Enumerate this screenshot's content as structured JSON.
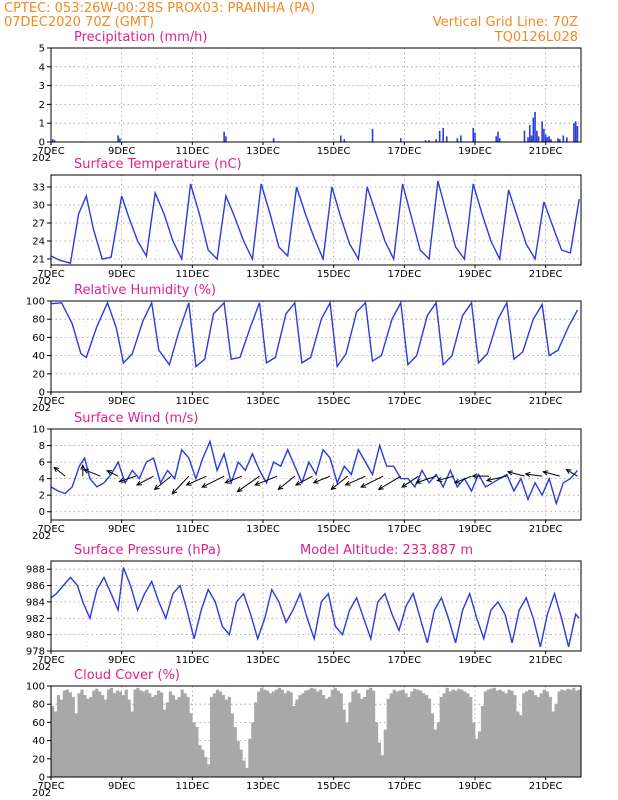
{
  "header": {
    "line1": "CPTEC:   053:26W-00:28S   PROX03: PRAINHA (PA)",
    "line2_left": "07DEC2020 70Z (GMT)",
    "line2_right": "Vertical Grid Line: 70Z",
    "line3_right": "TQ0126L028"
  },
  "colors": {
    "header": "#f08a24",
    "panel_title": "#e0208a",
    "line": "#2b3bdc",
    "bar_precip": "#2b3bdc",
    "cloud_bar": "#a8a8a8",
    "wind_arrow": "#000000"
  },
  "x_axis": {
    "tick_labels": [
      "7DEC",
      "9DEC",
      "11DEC",
      "13DEC",
      "15DEC",
      "17DEC",
      "19DEC",
      "21DEC"
    ],
    "tick_days": [
      7,
      9,
      11,
      13,
      15,
      17,
      19,
      21
    ],
    "day_range": [
      7,
      22
    ],
    "edge_label": "202"
  },
  "chart_data": [
    {
      "id": "precip",
      "type": "bar",
      "title": "Precipitation  (mm/h)",
      "ylim": [
        0,
        5
      ],
      "yticks": [
        0,
        1,
        2,
        3,
        4,
        5
      ],
      "grid": true,
      "x_days": [
        7.05,
        7.1,
        8.9,
        8.95,
        11.9,
        11.95,
        13.3,
        15.2,
        15.3,
        16.1,
        16.9,
        17.6,
        17.7,
        17.9,
        18.0,
        18.1,
        18.2,
        18.5,
        18.6,
        18.95,
        19.0,
        19.6,
        19.65,
        19.7,
        20.4,
        20.5,
        20.55,
        20.6,
        20.65,
        20.7,
        20.75,
        20.8,
        20.9,
        20.95,
        21.0,
        21.05,
        21.1,
        21.15,
        21.35,
        21.4,
        21.5,
        21.6,
        21.8,
        21.85,
        21.9
      ],
      "values": [
        0.15,
        0.1,
        0.35,
        0.2,
        0.55,
        0.3,
        0.2,
        0.35,
        0.15,
        0.7,
        0.2,
        0.1,
        0.1,
        0.15,
        0.6,
        0.75,
        0.3,
        0.2,
        0.35,
        0.75,
        0.5,
        0.3,
        0.55,
        0.2,
        0.6,
        0.25,
        0.9,
        0.35,
        1.3,
        1.6,
        0.6,
        0.3,
        1.1,
        0.7,
        0.4,
        0.25,
        0.3,
        0.15,
        0.2,
        0.15,
        0.35,
        0.25,
        1.0,
        1.1,
        0.85
      ]
    },
    {
      "id": "temp",
      "type": "line",
      "title": "Surface Temperature (nC)",
      "ylim": [
        20,
        35
      ],
      "yticks": [
        21,
        24,
        27,
        30,
        33
      ],
      "grid": true,
      "x_days": [
        7.0,
        7.25,
        7.55,
        7.78,
        8.0,
        8.2,
        8.45,
        8.7,
        9.0,
        9.2,
        9.45,
        9.7,
        9.95,
        10.2,
        10.45,
        10.7,
        10.95,
        11.2,
        11.45,
        11.7,
        11.95,
        12.2,
        12.45,
        12.7,
        12.95,
        13.2,
        13.45,
        13.7,
        13.95,
        14.2,
        14.45,
        14.7,
        14.95,
        15.2,
        15.45,
        15.7,
        15.95,
        16.2,
        16.45,
        16.7,
        16.95,
        17.2,
        17.45,
        17.7,
        17.95,
        18.2,
        18.45,
        18.7,
        18.95,
        19.2,
        19.45,
        19.7,
        19.95,
        20.2,
        20.45,
        20.7,
        20.95,
        21.2,
        21.45,
        21.7,
        21.95
      ],
      "values": [
        21.5,
        20.8,
        20.3,
        28.5,
        31.5,
        26,
        21,
        21.3,
        31.5,
        28,
        24,
        21.5,
        32,
        28.5,
        24,
        21,
        33.5,
        28.5,
        22.5,
        21,
        31.5,
        28,
        24,
        21,
        33.5,
        28.5,
        23,
        21.5,
        33,
        28.5,
        24.5,
        21,
        33,
        28,
        23.5,
        21,
        33,
        28.5,
        24,
        21,
        33.5,
        28,
        22.5,
        21,
        34,
        28.5,
        23,
        21,
        33.5,
        28.5,
        24,
        21,
        32.5,
        28,
        23.5,
        21,
        30.5,
        26.5,
        22.5,
        22,
        31
      ]
    },
    {
      "id": "rh",
      "type": "line",
      "title": "Relative Humidity (%)",
      "ylim": [
        0,
        100
      ],
      "yticks": [
        0,
        20,
        40,
        60,
        80,
        100
      ],
      "grid": true,
      "x_days": [
        7.0,
        7.3,
        7.6,
        7.85,
        8.0,
        8.3,
        8.6,
        8.85,
        9.05,
        9.3,
        9.6,
        9.85,
        10.05,
        10.35,
        10.6,
        10.9,
        11.1,
        11.35,
        11.6,
        11.9,
        12.1,
        12.35,
        12.65,
        12.9,
        13.1,
        13.35,
        13.65,
        13.9,
        14.1,
        14.35,
        14.65,
        14.9,
        15.1,
        15.35,
        15.65,
        15.9,
        16.1,
        16.35,
        16.65,
        16.9,
        17.1,
        17.35,
        17.65,
        17.9,
        18.1,
        18.35,
        18.65,
        18.9,
        19.1,
        19.35,
        19.65,
        19.9,
        20.1,
        20.35,
        20.65,
        20.9,
        21.1,
        21.35,
        21.65,
        21.9
      ],
      "values": [
        97,
        98,
        75,
        42,
        38,
        72,
        98,
        70,
        32,
        42,
        78,
        98,
        46,
        30,
        64,
        98,
        28,
        36,
        86,
        98,
        36,
        38,
        72,
        98,
        32,
        38,
        86,
        98,
        32,
        38,
        80,
        98,
        28,
        42,
        88,
        98,
        34,
        40,
        80,
        98,
        30,
        40,
        84,
        98,
        30,
        40,
        84,
        98,
        32,
        42,
        80,
        98,
        36,
        44,
        80,
        96,
        40,
        46,
        72,
        90
      ]
    },
    {
      "id": "wind",
      "type": "line",
      "title": "Surface Wind (m/s)",
      "ylim": [
        -1,
        10
      ],
      "yticks": [
        0,
        2,
        4,
        6,
        8,
        10
      ],
      "grid": true,
      "x_days": [
        7.0,
        7.2,
        7.4,
        7.6,
        7.8,
        7.95,
        8.1,
        8.3,
        8.5,
        8.7,
        8.9,
        9.1,
        9.3,
        9.5,
        9.7,
        9.9,
        10.1,
        10.3,
        10.5,
        10.7,
        10.9,
        11.1,
        11.3,
        11.5,
        11.7,
        11.9,
        12.1,
        12.3,
        12.5,
        12.7,
        12.9,
        13.1,
        13.3,
        13.5,
        13.7,
        13.9,
        14.1,
        14.3,
        14.5,
        14.7,
        14.9,
        15.1,
        15.3,
        15.5,
        15.7,
        15.9,
        16.1,
        16.3,
        16.5,
        16.7,
        16.9,
        17.1,
        17.3,
        17.5,
        17.7,
        17.9,
        18.1,
        18.3,
        18.5,
        18.7,
        18.9,
        19.1,
        19.3,
        19.5,
        19.7,
        19.9,
        20.1,
        20.3,
        20.5,
        20.7,
        20.9,
        21.1,
        21.3,
        21.5,
        21.7,
        21.9
      ],
      "values": [
        3,
        2.5,
        2.2,
        3,
        5.5,
        6.5,
        4,
        3,
        3.5,
        4.5,
        6,
        3.5,
        5,
        4,
        6,
        6.5,
        3.5,
        5,
        4,
        7.5,
        6.5,
        4,
        6.5,
        8.5,
        5,
        7,
        3.5,
        6,
        5,
        7,
        5,
        3.5,
        6,
        5.5,
        7.5,
        5.5,
        3.5,
        6,
        4.5,
        7.5,
        6.5,
        3.5,
        5.5,
        4.5,
        7.5,
        6,
        4.5,
        8,
        5.5,
        5.5,
        4,
        4,
        3,
        5,
        3.5,
        4.5,
        3,
        5,
        3,
        4,
        2.5,
        4.5,
        3,
        3.5,
        4,
        4.5,
        2.5,
        4,
        1.5,
        3.5,
        2,
        4,
        1,
        3.5,
        4,
        5
      ]
    },
    {
      "id": "pressure",
      "type": "line",
      "title": "Surface Pressure (hPa)",
      "title_right": "Model Altitude: 233.887  m",
      "ylim": [
        978,
        989
      ],
      "yticks": [
        978,
        980,
        982,
        984,
        986,
        988
      ],
      "grid": true,
      "x_days": [
        7.0,
        7.15,
        7.35,
        7.55,
        7.75,
        7.9,
        8.1,
        8.3,
        8.5,
        8.7,
        8.9,
        9.05,
        9.25,
        9.45,
        9.65,
        9.85,
        10.05,
        10.25,
        10.45,
        10.65,
        10.85,
        11.05,
        11.25,
        11.45,
        11.65,
        11.85,
        12.05,
        12.25,
        12.45,
        12.65,
        12.85,
        13.05,
        13.25,
        13.45,
        13.65,
        13.85,
        14.05,
        14.25,
        14.45,
        14.65,
        14.85,
        15.05,
        15.25,
        15.45,
        15.65,
        15.85,
        16.05,
        16.25,
        16.45,
        16.65,
        16.85,
        17.05,
        17.25,
        17.45,
        17.65,
        17.85,
        18.05,
        18.25,
        18.45,
        18.65,
        18.85,
        19.05,
        19.25,
        19.45,
        19.65,
        19.85,
        20.05,
        20.25,
        20.45,
        20.65,
        20.85,
        21.05,
        21.25,
        21.45,
        21.65,
        21.85,
        21.95
      ],
      "values": [
        984.5,
        985,
        986,
        987,
        986,
        984,
        982,
        985.5,
        987,
        985,
        983,
        988.2,
        986,
        983,
        985,
        986.5,
        984,
        982,
        985,
        986,
        983,
        979.5,
        983,
        985.5,
        984,
        981,
        980,
        984,
        985,
        982.5,
        979.5,
        982,
        985.5,
        984,
        981.5,
        983,
        985,
        982,
        979.5,
        984,
        985,
        981,
        980,
        983,
        984.5,
        982,
        979.5,
        984,
        985,
        982.5,
        980.5,
        983.5,
        985,
        982,
        979,
        983,
        984.5,
        982,
        979,
        983,
        985,
        982,
        979.5,
        983,
        984,
        982.5,
        979,
        983,
        984.5,
        982,
        978.5,
        982.5,
        985,
        982,
        978.5,
        982.5,
        982
      ]
    },
    {
      "id": "cloud",
      "type": "bar",
      "title": "Cloud Cover (%)",
      "ylim": [
        0,
        100
      ],
      "yticks": [
        0,
        20,
        40,
        60,
        80,
        100
      ],
      "grid": true,
      "x_range": [
        7,
        22
      ],
      "bar_count": 180,
      "values": [
        78,
        72,
        90,
        85,
        95,
        96,
        93,
        88,
        70,
        92,
        96,
        90,
        86,
        88,
        95,
        97,
        94,
        90,
        85,
        96,
        98,
        92,
        95,
        94,
        90,
        96,
        85,
        72,
        96,
        98,
        95,
        94,
        96,
        92,
        88,
        90,
        95,
        93,
        74,
        82,
        94,
        90,
        85,
        88,
        96,
        92,
        88,
        70,
        60,
        55,
        35,
        30,
        22,
        14,
        88,
        92,
        96,
        94,
        90,
        85,
        88,
        70,
        55,
        40,
        30,
        18,
        10,
        42,
        60,
        82,
        94,
        98,
        96,
        95,
        92,
        94,
        96,
        98,
        96,
        92,
        95,
        93,
        78,
        85,
        90,
        92,
        95,
        96,
        98,
        97,
        94,
        96,
        90,
        86,
        88,
        96,
        98,
        95,
        92,
        74,
        60,
        82,
        94,
        96,
        92,
        86,
        88,
        96,
        98,
        95,
        60,
        38,
        24,
        52,
        86,
        92,
        96,
        94,
        95,
        96,
        92,
        88,
        94,
        97,
        96,
        95,
        92,
        90,
        86,
        70,
        52,
        60,
        88,
        92,
        98,
        94,
        96,
        95,
        97,
        96,
        94,
        92,
        88,
        60,
        42,
        50,
        78,
        94,
        96,
        97,
        98,
        95,
        96,
        94,
        92,
        96,
        95,
        90,
        72,
        68,
        92,
        94,
        96,
        95,
        90,
        88,
        92,
        96,
        94,
        88,
        72,
        80,
        94,
        96,
        95,
        97,
        96,
        98,
        95,
        96
      ]
    }
  ],
  "wind_vectors": {
    "x_days": [
      7.4,
      7.9,
      8.4,
      8.9,
      9.4,
      9.9,
      10.4,
      10.9,
      11.4,
      11.9,
      12.4,
      12.9,
      13.4,
      13.9,
      14.4,
      14.9,
      15.4,
      15.9,
      16.4,
      16.9,
      17.4,
      17.9,
      18.4,
      18.9,
      19.4,
      19.9,
      20.4,
      20.9,
      21.4,
      21.9
    ],
    "u": [
      -1,
      0,
      -1.5,
      -1,
      -1.5,
      -1.5,
      -1.5,
      -1.5,
      -1.8,
      -2,
      -1.5,
      -2,
      -2,
      -1.5,
      -1.5,
      -1.5,
      -1.5,
      -1.8,
      -2,
      -2,
      -1.5,
      -1.8,
      -1.5,
      -1.5,
      -1.5,
      -1.8,
      -1.5,
      -1.5,
      -1.5,
      -1
    ],
    "v": [
      0.8,
      1,
      0.6,
      0.5,
      -0.5,
      -0.8,
      -1.2,
      -1.6,
      -0.8,
      -1,
      -0.6,
      -1.4,
      -0.8,
      -1.2,
      -0.8,
      -0.6,
      -1.2,
      -0.8,
      -1,
      -1.2,
      -1,
      -0.6,
      -0.4,
      -0.6,
      0,
      -0.4,
      0.4,
      0.2,
      0.4,
      0.6
    ]
  }
}
